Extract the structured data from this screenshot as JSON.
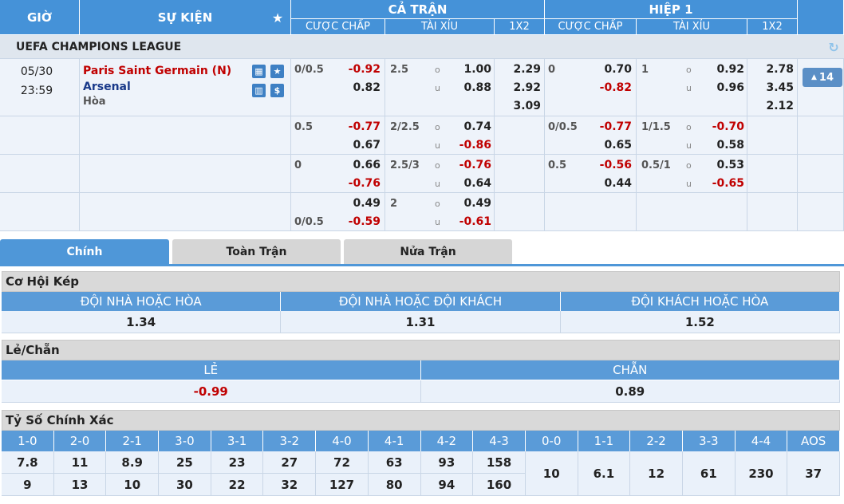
{
  "header": {
    "time": "GIỜ",
    "event": "SỰ KIỆN",
    "full_match": "CẢ TRẬN",
    "first_half": "HIỆP 1",
    "columns": [
      "CƯỢC CHẤP",
      "TÀI XỈU",
      "1X2",
      "CƯỢC CHẤP",
      "TÀI XỈU",
      "1X2"
    ]
  },
  "league": "UEFA CHAMPIONS LEAGUE",
  "match": {
    "date": "05/30",
    "time": "23:59",
    "home": "Paris Saint Germain (N)",
    "away": "Arsenal",
    "draw": "Hòa",
    "more": "14"
  },
  "over_label": "o",
  "under_label": "u",
  "odds": [
    {
      "full": {
        "handicap": {
          "line": "0/0.5",
          "home": "-0.92",
          "away": "0.82"
        },
        "total": {
          "line": "2.5",
          "over": "1.00",
          "under": "0.88"
        },
        "x12": [
          "2.29",
          "2.92",
          "3.09"
        ]
      },
      "half": {
        "handicap": {
          "line": "0",
          "home": "0.70",
          "away": "-0.82"
        },
        "total": {
          "line": "1",
          "over": "0.92",
          "under": "0.96"
        },
        "x12": [
          "2.78",
          "3.45",
          "2.12"
        ]
      }
    },
    {
      "full": {
        "handicap": {
          "line": "0.5",
          "home": "-0.77",
          "away": "0.67"
        },
        "total": {
          "line": "2/2.5",
          "over": "0.74",
          "under": "-0.86"
        }
      },
      "half": {
        "handicap": {
          "line": "0/0.5",
          "home": "-0.77",
          "away": "0.65"
        },
        "total": {
          "line": "1/1.5",
          "over": "-0.70",
          "under": "0.58"
        }
      }
    },
    {
      "full": {
        "handicap": {
          "line": "0",
          "home": "0.66",
          "away": "-0.76"
        },
        "total": {
          "line": "2.5/3",
          "over": "-0.76",
          "under": "0.64"
        }
      },
      "half": {
        "handicap": {
          "line": "0.5",
          "home": "-0.56",
          "away": "0.44"
        },
        "total": {
          "line": "0.5/1",
          "over": "0.53",
          "under": "-0.65"
        }
      }
    },
    {
      "full": {
        "handicap": {
          "away_line": "0/0.5",
          "home": "0.49",
          "away": "-0.59"
        },
        "total": {
          "line": "2",
          "over": "0.49",
          "under": "-0.61"
        }
      }
    }
  ],
  "tabs": [
    "Chính",
    "Toàn Trận",
    "Nửa Trận"
  ],
  "double_chance": {
    "title": "Cơ Hội Kép",
    "headers": [
      "ĐỘI NHÀ HOẶC HÒA",
      "ĐỘI NHÀ HOẶC ĐỘI KHÁCH",
      "ĐỘI KHÁCH HOẶC HÒA"
    ],
    "values": [
      "1.34",
      "1.31",
      "1.52"
    ]
  },
  "odd_even": {
    "title": "Lẻ/Chẵn",
    "headers": [
      "LẺ",
      "CHẴN"
    ],
    "values": [
      "-0.99",
      "0.89"
    ]
  },
  "correct_score": {
    "title": "Tỷ Số Chính Xác",
    "headers": [
      "1-0",
      "2-0",
      "2-1",
      "3-0",
      "3-1",
      "3-2",
      "4-0",
      "4-1",
      "4-2",
      "4-3",
      "0-0",
      "1-1",
      "2-2",
      "3-3",
      "4-4",
      "AOS"
    ],
    "values": [
      [
        "7.8",
        "9"
      ],
      [
        "11",
        "13"
      ],
      [
        "8.9",
        "10"
      ],
      [
        "25",
        "30"
      ],
      [
        "23",
        "22"
      ],
      [
        "27",
        "32"
      ],
      [
        "72",
        "127"
      ],
      [
        "63",
        "80"
      ],
      [
        "93",
        "94"
      ],
      [
        "158",
        "160"
      ],
      [
        "10"
      ],
      [
        "6.1"
      ],
      [
        "12"
      ],
      [
        "61"
      ],
      [
        "230"
      ],
      [
        "37"
      ]
    ]
  }
}
